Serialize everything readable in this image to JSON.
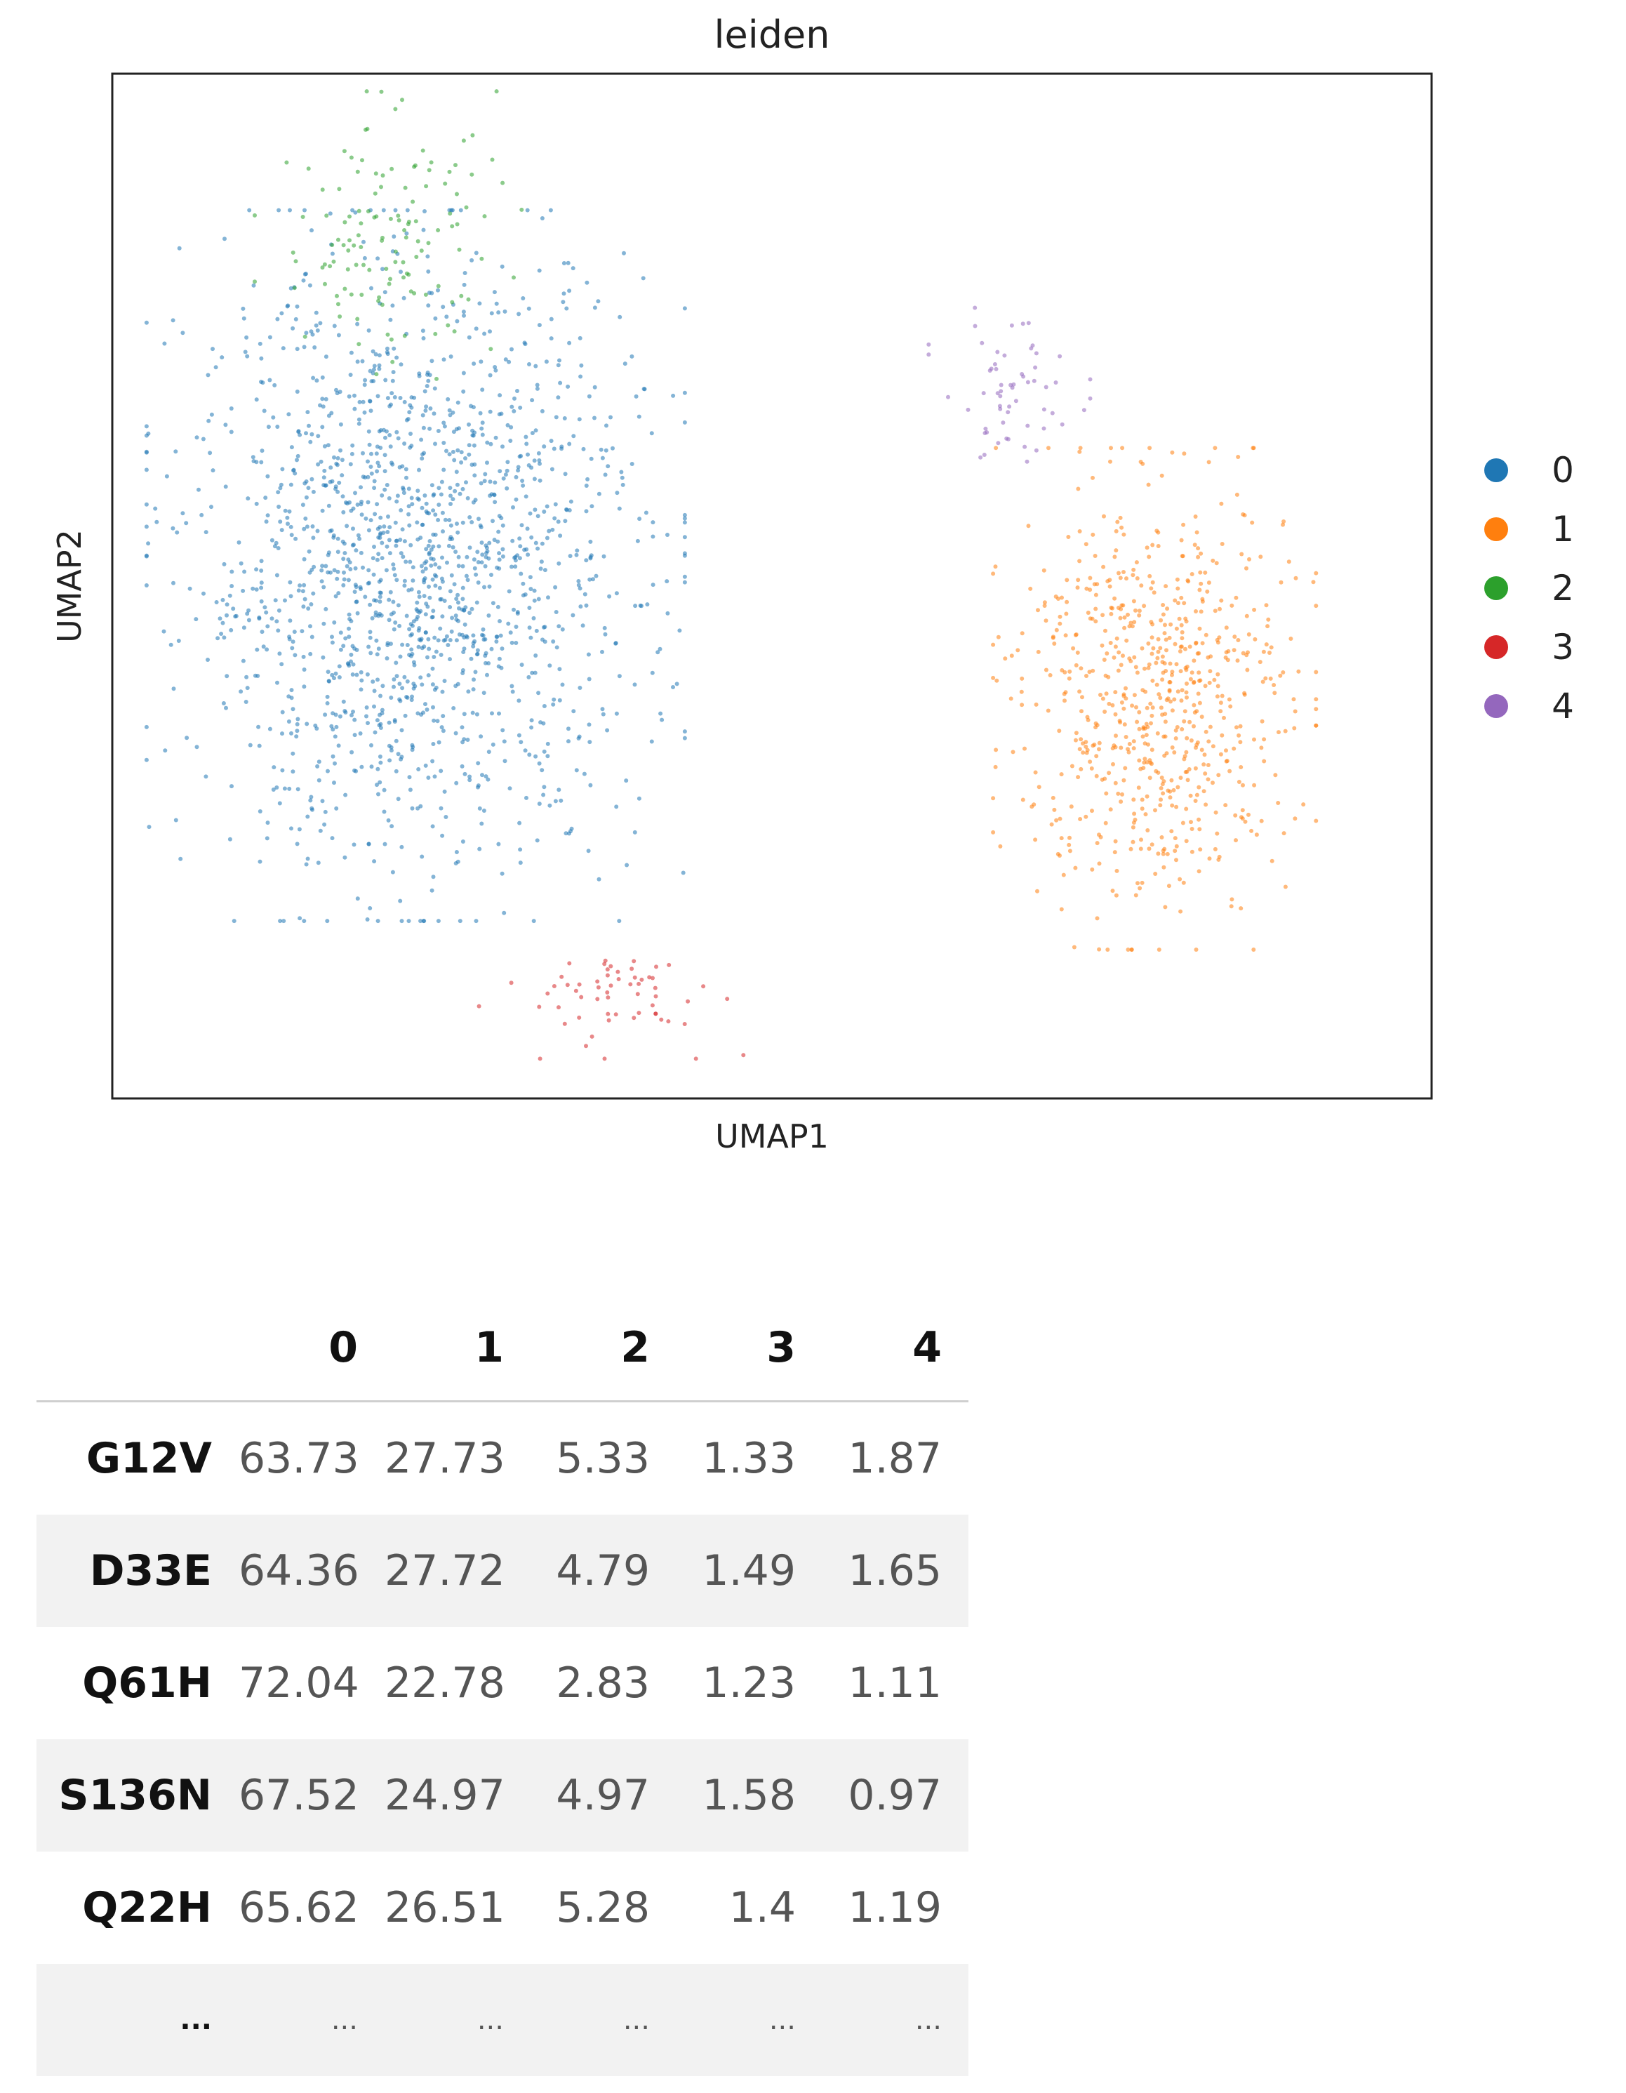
{
  "chart_data": {
    "type": "scatter",
    "title": "leiden",
    "xlabel": "UMAP1",
    "ylabel": "UMAP2",
    "xlim": [
      0,
      100
    ],
    "ylim": [
      0,
      100
    ],
    "grid": false,
    "legend_position": "right",
    "series": [
      {
        "name": "0",
        "color": "#1f77b4"
      },
      {
        "name": "1",
        "color": "#ff7f0e"
      },
      {
        "name": "2",
        "color": "#2ca02c"
      },
      {
        "name": "3",
        "color": "#d62728"
      },
      {
        "name": "4",
        "color": "#9467bd"
      }
    ],
    "clusters": [
      {
        "label": "0",
        "center": [
          23,
          52
        ],
        "spread": [
          10,
          17
        ],
        "weight": 0.62
      },
      {
        "label": "1",
        "center": [
          79,
          39
        ],
        "spread": [
          6,
          12
        ],
        "weight": 0.27
      },
      {
        "label": "2",
        "center": [
          21,
          84
        ],
        "spread": [
          5,
          7
        ],
        "weight": 0.05
      },
      {
        "label": "3",
        "center": [
          38,
          10
        ],
        "spread": [
          5,
          3
        ],
        "weight": 0.015
      },
      {
        "label": "4",
        "center": [
          68,
          69
        ],
        "spread": [
          3,
          4
        ],
        "weight": 0.015
      }
    ]
  },
  "table": {
    "columns": [
      "0",
      "1",
      "2",
      "3",
      "4"
    ],
    "rows": [
      {
        "index": "G12V",
        "values": [
          "63.73",
          "27.73",
          "5.33",
          "1.33",
          "1.87"
        ]
      },
      {
        "index": "D33E",
        "values": [
          "64.36",
          "27.72",
          "4.79",
          "1.49",
          "1.65"
        ]
      },
      {
        "index": "Q61H",
        "values": [
          "72.04",
          "22.78",
          "2.83",
          "1.23",
          "1.11"
        ]
      },
      {
        "index": "S136N",
        "values": [
          "67.52",
          "24.97",
          "4.97",
          "1.58",
          "0.97"
        ]
      },
      {
        "index": "Q22H",
        "values": [
          "65.62",
          "26.51",
          "5.28",
          "1.4",
          "1.19"
        ]
      },
      {
        "index": "...",
        "values": [
          "...",
          "...",
          "...",
          "...",
          "..."
        ]
      }
    ]
  }
}
